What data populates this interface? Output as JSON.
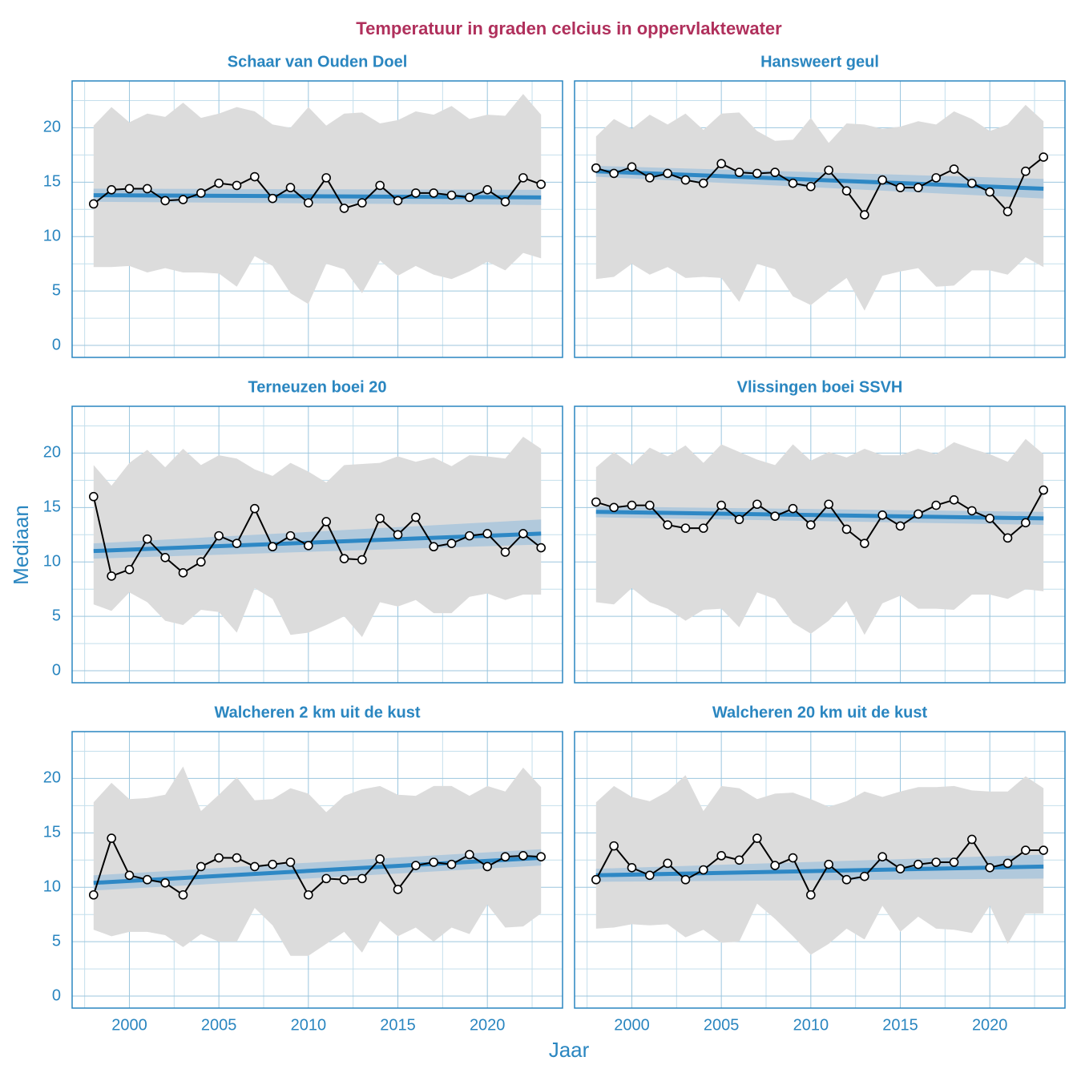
{
  "title": "Temperatuur in graden celcius in oppervlaktewater",
  "x_label": "Jaar",
  "y_label": "Mediaan",
  "chart_data": [
    {
      "type": "line",
      "title": "Schaar van Ouden Doel",
      "x": [
        1998,
        1999,
        2000,
        2001,
        2002,
        2003,
        2004,
        2005,
        2006,
        2007,
        2008,
        2009,
        2010,
        2011,
        2012,
        2013,
        2014,
        2015,
        2016,
        2017,
        2018,
        2019,
        2020,
        2021,
        2022,
        2023
      ],
      "values": [
        13.0,
        14.3,
        14.4,
        14.4,
        13.3,
        13.4,
        14.0,
        14.9,
        14.7,
        15.5,
        13.5,
        14.5,
        13.1,
        15.4,
        12.6,
        13.1,
        14.7,
        13.3,
        14.0,
        14.0,
        13.8,
        13.6,
        14.3,
        13.2,
        15.4,
        14.8
      ],
      "range_upper": [
        20.2,
        21.9,
        20.5,
        21.3,
        21.0,
        22.3,
        20.9,
        21.3,
        21.9,
        21.5,
        20.3,
        20.0,
        21.9,
        20.2,
        21.3,
        21.4,
        20.4,
        20.7,
        21.5,
        21.2,
        22.0,
        20.8,
        21.2,
        21.1,
        23.1,
        21.2
      ],
      "range_lower": [
        7.2,
        7.2,
        7.3,
        6.7,
        7.1,
        6.7,
        6.7,
        6.6,
        5.4,
        8.2,
        7.3,
        4.8,
        3.8,
        7.5,
        7.0,
        4.8,
        7.8,
        6.4,
        7.3,
        6.5,
        6.1,
        6.8,
        7.7,
        6.9,
        8.5,
        8.0
      ],
      "trend": [
        13.8,
        13.6
      ],
      "trend_lower": [
        13.2,
        12.9
      ],
      "trend_upper": [
        14.4,
        14.3
      ],
      "xlim": [
        1996.8,
        2024.2
      ],
      "ylim": [
        -1.1,
        24.3
      ],
      "xticks": [
        2000,
        2005,
        2010,
        2015,
        2020
      ],
      "yticks": [
        0,
        5,
        10,
        15,
        20
      ],
      "grid": true,
      "color": "#000000",
      "range_color": "#dcdcdc",
      "trend_color": "#2e88c5",
      "band_color": "#a9c6dc"
    },
    {
      "type": "line",
      "title": "Hansweert geul",
      "x": [
        1998,
        1999,
        2000,
        2001,
        2002,
        2003,
        2004,
        2005,
        2006,
        2007,
        2008,
        2009,
        2010,
        2011,
        2012,
        2013,
        2014,
        2015,
        2016,
        2017,
        2018,
        2019,
        2020,
        2021,
        2022,
        2023
      ],
      "values": [
        16.3,
        15.8,
        16.4,
        15.4,
        15.8,
        15.2,
        14.9,
        16.7,
        15.9,
        15.8,
        15.9,
        14.9,
        14.6,
        16.1,
        14.2,
        12.0,
        15.2,
        14.5,
        14.5,
        15.4,
        16.2,
        14.9,
        14.1,
        12.3,
        16.0,
        17.3
      ],
      "range_upper": [
        19.2,
        20.8,
        19.9,
        21.2,
        20.3,
        21.3,
        19.8,
        21.3,
        21.4,
        19.7,
        18.8,
        18.9,
        20.9,
        18.6,
        20.4,
        20.3,
        19.9,
        20.1,
        20.6,
        20.3,
        21.5,
        20.8,
        19.7,
        20.3,
        22.1,
        20.6
      ],
      "range_lower": [
        6.1,
        6.3,
        7.5,
        6.5,
        7.2,
        6.2,
        6.3,
        6.2,
        4.0,
        7.5,
        7.0,
        4.5,
        3.7,
        5.0,
        6.2,
        3.2,
        6.4,
        6.8,
        7.1,
        5.4,
        5.5,
        6.9,
        6.9,
        6.5,
        8.1,
        7.2
      ],
      "trend": [
        16.0,
        14.4
      ],
      "trend_lower": [
        15.5,
        13.5
      ],
      "trend_upper": [
        16.5,
        15.3
      ],
      "xlim": [
        1996.8,
        2024.2
      ],
      "ylim": [
        -1.1,
        24.3
      ],
      "xticks": [
        2000,
        2005,
        2010,
        2015,
        2020
      ],
      "yticks": [
        0,
        5,
        10,
        15,
        20
      ],
      "grid": true,
      "color": "#000000",
      "range_color": "#dcdcdc",
      "trend_color": "#2e88c5",
      "band_color": "#a9c6dc"
    },
    {
      "type": "line",
      "title": "Terneuzen boei 20",
      "x": [
        1998,
        1999,
        2000,
        2001,
        2002,
        2003,
        2004,
        2005,
        2006,
        2007,
        2008,
        2009,
        2010,
        2011,
        2012,
        2013,
        2014,
        2015,
        2016,
        2017,
        2018,
        2019,
        2020,
        2021,
        2022,
        2023
      ],
      "values": [
        16.0,
        8.7,
        9.3,
        12.1,
        10.4,
        9.0,
        10.0,
        12.4,
        11.7,
        14.9,
        11.4,
        12.4,
        11.5,
        13.7,
        10.3,
        10.2,
        14.0,
        12.5,
        14.1,
        11.4,
        11.7,
        12.4,
        12.6,
        10.9,
        12.6,
        11.3
      ],
      "range_upper": [
        18.9,
        17.0,
        19.1,
        20.3,
        18.7,
        20.4,
        18.9,
        19.8,
        19.5,
        18.5,
        17.9,
        19.1,
        18.3,
        17.3,
        18.9,
        19.0,
        19.1,
        19.7,
        19.2,
        19.6,
        18.8,
        19.8,
        19.7,
        19.5,
        21.5,
        20.4
      ],
      "range_lower": [
        6.1,
        5.5,
        7.2,
        6.3,
        4.6,
        4.2,
        5.6,
        5.4,
        3.5,
        7.6,
        6.6,
        3.3,
        3.5,
        4.2,
        5.0,
        3.1,
        6.3,
        5.9,
        6.5,
        5.3,
        5.3,
        6.8,
        7.1,
        6.5,
        7.0,
        7.0
      ],
      "trend": [
        11.0,
        12.6
      ],
      "trend_lower": [
        10.3,
        11.6
      ],
      "trend_upper": [
        11.7,
        13.9
      ],
      "xlim": [
        1996.8,
        2024.2
      ],
      "ylim": [
        -1.1,
        24.3
      ],
      "xticks": [
        2000,
        2005,
        2010,
        2015,
        2020
      ],
      "yticks": [
        0,
        5,
        10,
        15,
        20
      ],
      "grid": true,
      "color": "#000000",
      "range_color": "#dcdcdc",
      "trend_color": "#2e88c5",
      "band_color": "#a9c6dc"
    },
    {
      "type": "line",
      "title": "Vlissingen boei SSVH",
      "x": [
        1998,
        1999,
        2000,
        2001,
        2002,
        2003,
        2004,
        2005,
        2006,
        2007,
        2008,
        2009,
        2010,
        2011,
        2012,
        2013,
        2014,
        2015,
        2016,
        2017,
        2018,
        2019,
        2020,
        2021,
        2022,
        2023
      ],
      "values": [
        15.5,
        15.0,
        15.2,
        15.2,
        13.4,
        13.1,
        13.1,
        15.2,
        13.9,
        15.3,
        14.2,
        14.9,
        13.4,
        15.3,
        13.0,
        11.7,
        14.3,
        13.3,
        14.4,
        15.2,
        15.7,
        14.7,
        14.0,
        12.2,
        13.6,
        16.6
      ],
      "range_upper": [
        18.7,
        20.1,
        18.9,
        20.5,
        19.7,
        20.7,
        19.1,
        20.8,
        20.1,
        19.4,
        18.9,
        20.8,
        19.3,
        20.1,
        19.6,
        20.4,
        19.8,
        19.8,
        20.4,
        19.9,
        21.0,
        20.4,
        19.9,
        19.2,
        21.3,
        19.9
      ],
      "range_lower": [
        6.3,
        6.1,
        7.6,
        6.3,
        5.7,
        4.6,
        5.6,
        5.7,
        4.0,
        7.2,
        6.6,
        4.4,
        3.4,
        4.6,
        6.4,
        3.3,
        6.2,
        6.9,
        5.7,
        5.7,
        5.6,
        7.0,
        7.0,
        6.6,
        7.5,
        7.3
      ],
      "trend": [
        14.6,
        14.0
      ],
      "trend_lower": [
        14.1,
        13.4
      ],
      "trend_upper": [
        15.1,
        14.6
      ],
      "xlim": [
        1996.8,
        2024.2
      ],
      "ylim": [
        -1.1,
        24.3
      ],
      "xticks": [
        2000,
        2005,
        2010,
        2015,
        2020
      ],
      "yticks": [
        0,
        5,
        10,
        15,
        20
      ],
      "grid": true,
      "color": "#000000",
      "range_color": "#dcdcdc",
      "trend_color": "#2e88c5",
      "band_color": "#a9c6dc"
    },
    {
      "type": "line",
      "title": "Walcheren 2 km uit de kust",
      "x": [
        1998,
        1999,
        2000,
        2001,
        2002,
        2003,
        2004,
        2005,
        2006,
        2007,
        2008,
        2009,
        2010,
        2011,
        2012,
        2013,
        2014,
        2015,
        2016,
        2017,
        2018,
        2019,
        2020,
        2021,
        2022,
        2023
      ],
      "values": [
        9.3,
        14.5,
        11.1,
        10.7,
        10.4,
        9.3,
        11.9,
        12.7,
        12.7,
        11.9,
        12.1,
        12.3,
        9.3,
        10.8,
        10.7,
        10.8,
        12.6,
        9.8,
        12.0,
        12.3,
        12.1,
        13.0,
        11.9,
        12.8,
        12.9,
        12.8
      ],
      "range_upper": [
        17.8,
        19.6,
        18.1,
        18.2,
        18.5,
        21.1,
        17.0,
        18.5,
        20.1,
        18.0,
        18.1,
        19.1,
        18.6,
        16.9,
        18.4,
        19.0,
        19.3,
        18.5,
        18.4,
        19.3,
        19.3,
        18.4,
        19.3,
        18.8,
        21.0,
        19.2
      ],
      "range_lower": [
        6.1,
        5.5,
        5.9,
        5.9,
        5.6,
        4.5,
        5.7,
        5.0,
        5.0,
        8.1,
        6.5,
        3.7,
        3.7,
        4.8,
        5.9,
        4.0,
        6.9,
        5.5,
        6.3,
        5.0,
        6.3,
        5.7,
        8.4,
        6.3,
        6.4,
        7.6
      ],
      "trend": [
        10.4,
        12.7
      ],
      "trend_lower": [
        9.7,
        12.0
      ],
      "trend_upper": [
        11.1,
        13.5
      ],
      "xlim": [
        1996.8,
        2024.2
      ],
      "ylim": [
        -1.1,
        24.3
      ],
      "xticks": [
        2000,
        2005,
        2010,
        2015,
        2020
      ],
      "yticks": [
        0,
        5,
        10,
        15,
        20
      ],
      "grid": true,
      "color": "#000000",
      "range_color": "#dcdcdc",
      "trend_color": "#2e88c5",
      "band_color": "#a9c6dc"
    },
    {
      "type": "line",
      "title": "Walcheren 20 km uit de kust",
      "x": [
        1998,
        1999,
        2000,
        2001,
        2002,
        2003,
        2004,
        2005,
        2006,
        2007,
        2008,
        2009,
        2010,
        2011,
        2012,
        2013,
        2014,
        2015,
        2016,
        2017,
        2018,
        2019,
        2020,
        2021,
        2022,
        2023
      ],
      "values": [
        10.7,
        13.8,
        11.8,
        11.1,
        12.2,
        10.7,
        11.6,
        12.9,
        12.5,
        14.5,
        12.0,
        12.7,
        9.3,
        12.1,
        10.7,
        11.0,
        12.8,
        11.7,
        12.1,
        12.3,
        12.3,
        14.4,
        11.8,
        12.2,
        13.4,
        13.4
      ],
      "range_upper": [
        17.8,
        19.3,
        18.3,
        17.9,
        18.8,
        20.3,
        17.0,
        19.3,
        19.1,
        18.1,
        18.6,
        18.7,
        18.1,
        17.4,
        17.9,
        18.8,
        18.3,
        18.8,
        19.2,
        19.2,
        19.3,
        18.9,
        18.8,
        18.8,
        20.2,
        19.1
      ],
      "range_lower": [
        6.2,
        6.3,
        6.6,
        6.5,
        6.6,
        5.4,
        6.1,
        4.9,
        5.0,
        8.5,
        7.1,
        5.5,
        3.8,
        4.8,
        6.2,
        5.2,
        8.3,
        5.9,
        7.3,
        6.2,
        6.1,
        5.8,
        8.3,
        4.8,
        7.6,
        7.6
      ],
      "trend": [
        11.1,
        11.9
      ],
      "trend_lower": [
        10.5,
        10.8
      ],
      "trend_upper": [
        11.7,
        13.0
      ],
      "xlim": [
        1996.8,
        2024.2
      ],
      "ylim": [
        -1.1,
        24.3
      ],
      "xticks": [
        2000,
        2005,
        2010,
        2015,
        2020
      ],
      "yticks": [
        0,
        5,
        10,
        15,
        20
      ],
      "grid": true,
      "color": "#000000",
      "range_color": "#dcdcdc",
      "trend_color": "#2e88c5",
      "band_color": "#a9c6dc"
    }
  ]
}
